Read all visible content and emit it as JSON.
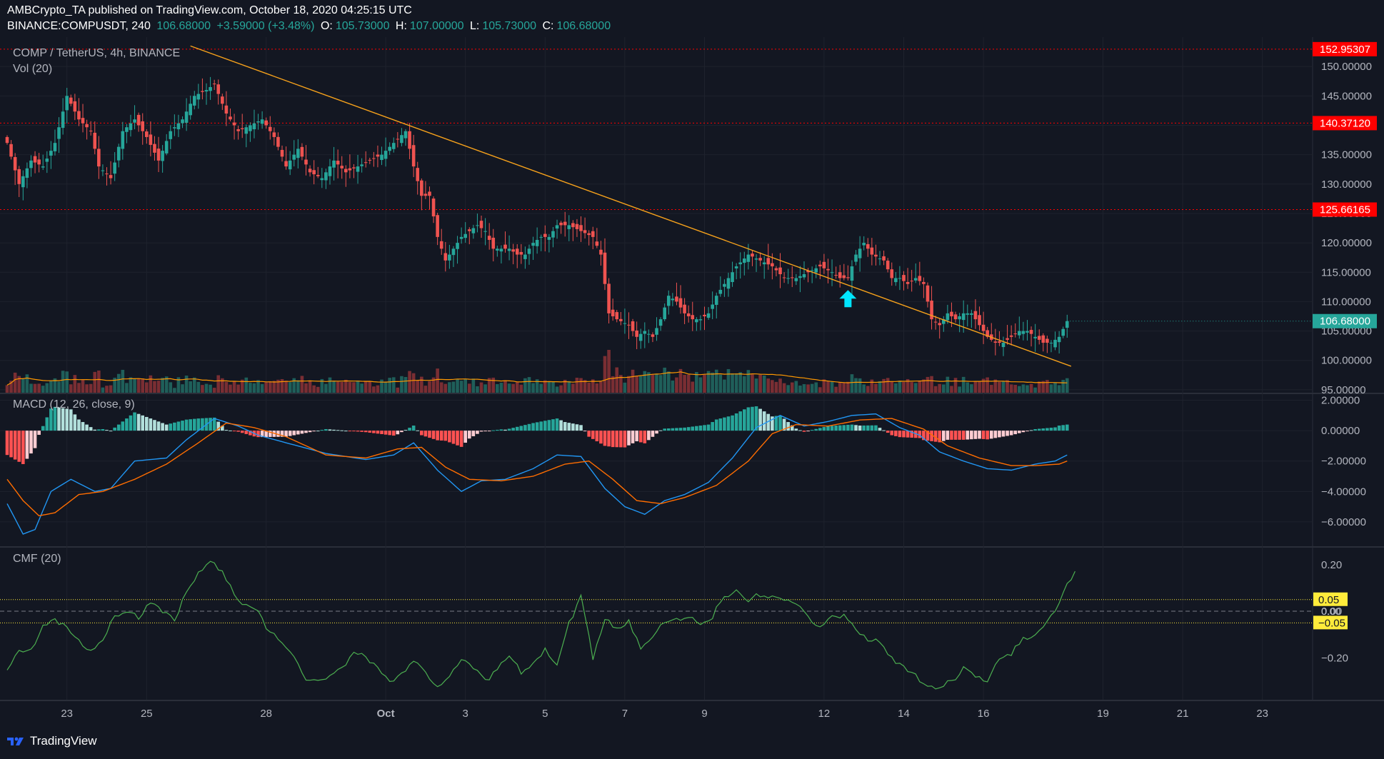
{
  "header": {
    "publisher": "AMBCrypto_TA published on TradingView.com, October 18, 2020 04:25:15 UTC",
    "symbol": "BINANCE:COMPUSDT, 240",
    "last": "106.68000",
    "change": "+3.59000 (+3.48%)",
    "o_label": "O:",
    "o_value": "105.73000",
    "h_label": "H:",
    "h_value": "107.00000",
    "l_label": "L:",
    "l_value": "105.73000",
    "c_label": "C:",
    "c_value": "106.68000"
  },
  "panes": {
    "main_title": "COMP / TetherUS, 4h, BINANCE",
    "vol_title": "Vol (20)",
    "macd_title": "MACD (12, 26, close, 9)",
    "cmf_title": "CMF (20)"
  },
  "footer": {
    "brand": "TradingView"
  },
  "colors": {
    "background": "#131722",
    "up": "#26a69a",
    "down": "#ef5350",
    "trendline": "#f7a21b",
    "macd": "#2196f3",
    "signal": "#ff6d00",
    "cmf": "#4caf50",
    "level": "#ff0000",
    "cmf_band": "#ffeb3b"
  },
  "chart_data": [
    {
      "type": "candlestick",
      "title": "COMP / TetherUS, 4h, BINANCE",
      "y_ticks": [
        "150.00000",
        "145.00000",
        "140.00000",
        "135.00000",
        "130.00000",
        "125.00000",
        "120.00000",
        "115.00000",
        "110.00000",
        "105.00000",
        "100.00000",
        "95.00000"
      ],
      "ylim": [
        94.5,
        155
      ],
      "x_ticks": [
        {
          "label": "23",
          "i": 15
        },
        {
          "label": "25",
          "i": 35
        },
        {
          "label": "28",
          "i": 65
        },
        {
          "label": "Oct",
          "i": 95
        },
        {
          "label": "3",
          "i": 115
        },
        {
          "label": "5",
          "i": 135
        },
        {
          "label": "7",
          "i": 155
        },
        {
          "label": "9",
          "i": 175
        },
        {
          "label": "12",
          "i": 205
        },
        {
          "label": "14",
          "i": 225
        },
        {
          "label": "16",
          "i": 245
        },
        {
          "label": "19",
          "i": 275
        },
        {
          "label": "21",
          "i": 295
        },
        {
          "label": "23",
          "i": 315
        }
      ],
      "horizontal_levels": [
        {
          "value": 152.95307,
          "label": "152.95307"
        },
        {
          "value": 140.3712,
          "label": "140.37120"
        },
        {
          "value": 125.66165,
          "label": "125.66165"
        }
      ],
      "last_price": {
        "value": 106.68,
        "label": "106.68000"
      },
      "trendline": {
        "from": {
          "i": 46,
          "price": 153.5
        },
        "to": {
          "i": 267,
          "price": 99.0
        }
      },
      "signal_arrow": {
        "i": 211,
        "price": 110.5
      },
      "anchors": [
        [
          0,
          137
        ],
        [
          3,
          130
        ],
        [
          6,
          134
        ],
        [
          9,
          133
        ],
        [
          12,
          137
        ],
        [
          15,
          145
        ],
        [
          18,
          141
        ],
        [
          21,
          139
        ],
        [
          23,
          133
        ],
        [
          26,
          131
        ],
        [
          29,
          139
        ],
        [
          32,
          141
        ],
        [
          35,
          138
        ],
        [
          38,
          134
        ],
        [
          41,
          139
        ],
        [
          44,
          141
        ],
        [
          47,
          145
        ],
        [
          50,
          146
        ],
        [
          52,
          147
        ],
        [
          55,
          142
        ],
        [
          58,
          139
        ],
        [
          61,
          140
        ],
        [
          64,
          141
        ],
        [
          67,
          138
        ],
        [
          70,
          133
        ],
        [
          73,
          136
        ],
        [
          76,
          132
        ],
        [
          79,
          131
        ],
        [
          82,
          134
        ],
        [
          85,
          132
        ],
        [
          88,
          133
        ],
        [
          91,
          134
        ],
        [
          94,
          135
        ],
        [
          97,
          137
        ],
        [
          100,
          139
        ],
        [
          102,
          133
        ],
        [
          104,
          128
        ],
        [
          106,
          128
        ],
        [
          108,
          121
        ],
        [
          110,
          117
        ],
        [
          112,
          119
        ],
        [
          114,
          121
        ],
        [
          116,
          122
        ],
        [
          118,
          123
        ],
        [
          120,
          122
        ],
        [
          122,
          119
        ],
        [
          124,
          119
        ],
        [
          126,
          119
        ],
        [
          128,
          118
        ],
        [
          130,
          118
        ],
        [
          132,
          120
        ],
        [
          134,
          121
        ],
        [
          136,
          121
        ],
        [
          138,
          123
        ],
        [
          141,
          123
        ],
        [
          144,
          122
        ],
        [
          147,
          121
        ],
        [
          149,
          118
        ],
        [
          151,
          108
        ],
        [
          153,
          107
        ],
        [
          156,
          106
        ],
        [
          158,
          104
        ],
        [
          160,
          105
        ],
        [
          162,
          104
        ],
        [
          164,
          107
        ],
        [
          166,
          111
        ],
        [
          168,
          110
        ],
        [
          170,
          108
        ],
        [
          172,
          107
        ],
        [
          174,
          107
        ],
        [
          176,
          108
        ],
        [
          178,
          111
        ],
        [
          180,
          113
        ],
        [
          183,
          116
        ],
        [
          186,
          118
        ],
        [
          189,
          117
        ],
        [
          192,
          116
        ],
        [
          195,
          114
        ],
        [
          198,
          114
        ],
        [
          201,
          115
        ],
        [
          204,
          116
        ],
        [
          207,
          115
        ],
        [
          209,
          114
        ],
        [
          211,
          114
        ],
        [
          213,
          118
        ],
        [
          215,
          120
        ],
        [
          217,
          118
        ],
        [
          220,
          117
        ],
        [
          222,
          114
        ],
        [
          224,
          114
        ],
        [
          226,
          113
        ],
        [
          228,
          114
        ],
        [
          230,
          113
        ],
        [
          232,
          107
        ],
        [
          234,
          106
        ],
        [
          236,
          108
        ],
        [
          238,
          107
        ],
        [
          240,
          108
        ],
        [
          242,
          108
        ],
        [
          244,
          106
        ],
        [
          246,
          104
        ],
        [
          248,
          103
        ],
        [
          250,
          103
        ],
        [
          252,
          104
        ],
        [
          254,
          105
        ],
        [
          256,
          105
        ],
        [
          258,
          104
        ],
        [
          260,
          103
        ],
        [
          262,
          103
        ],
        [
          264,
          104
        ],
        [
          266,
          106.68
        ]
      ],
      "candles": 267
    },
    {
      "type": "bar",
      "title": "Vol (20)",
      "note": "volume histogram with 20-period moving average"
    },
    {
      "type": "line",
      "title": "MACD (12, 26, close, 9)",
      "y_ticks": [
        "2.00000",
        "0.00000",
        "−2.00000",
        "−4.00000",
        "−6.00000"
      ],
      "ylim": [
        -7.6,
        2.4
      ],
      "macd_anchors": [
        [
          0,
          -4.8
        ],
        [
          4,
          -6.8
        ],
        [
          7,
          -6.5
        ],
        [
          11,
          -4.0
        ],
        [
          16,
          -3.2
        ],
        [
          22,
          -4.0
        ],
        [
          26,
          -3.8
        ],
        [
          32,
          -2.0
        ],
        [
          40,
          -1.8
        ],
        [
          45,
          -0.6
        ],
        [
          52,
          0.8
        ],
        [
          58,
          0.3
        ],
        [
          63,
          -0.3
        ],
        [
          70,
          -0.8
        ],
        [
          80,
          -1.5
        ],
        [
          90,
          -1.9
        ],
        [
          97,
          -1.6
        ],
        [
          102,
          -0.8
        ],
        [
          108,
          -2.6
        ],
        [
          114,
          -4.0
        ],
        [
          119,
          -3.3
        ],
        [
          125,
          -3.2
        ],
        [
          132,
          -2.5
        ],
        [
          138,
          -1.6
        ],
        [
          144,
          -1.7
        ],
        [
          150,
          -3.8
        ],
        [
          155,
          -5.0
        ],
        [
          160,
          -5.5
        ],
        [
          165,
          -4.6
        ],
        [
          170,
          -4.2
        ],
        [
          176,
          -3.4
        ],
        [
          182,
          -1.8
        ],
        [
          188,
          0.2
        ],
        [
          194,
          1.0
        ],
        [
          200,
          0.3
        ],
        [
          206,
          0.6
        ],
        [
          212,
          1.0
        ],
        [
          218,
          1.1
        ],
        [
          224,
          0.2
        ],
        [
          229,
          -0.3
        ],
        [
          234,
          -1.4
        ],
        [
          240,
          -2.0
        ],
        [
          246,
          -2.5
        ],
        [
          252,
          -2.6
        ],
        [
          258,
          -2.2
        ],
        [
          263,
          -2.0
        ],
        [
          266,
          -1.6
        ]
      ],
      "signal_anchors": [
        [
          0,
          -3.2
        ],
        [
          4,
          -4.6
        ],
        [
          8,
          -5.6
        ],
        [
          12,
          -5.4
        ],
        [
          18,
          -4.2
        ],
        [
          24,
          -4.0
        ],
        [
          32,
          -3.2
        ],
        [
          40,
          -2.2
        ],
        [
          48,
          -0.8
        ],
        [
          55,
          0.5
        ],
        [
          62,
          0.2
        ],
        [
          70,
          -0.4
        ],
        [
          80,
          -1.6
        ],
        [
          90,
          -1.8
        ],
        [
          98,
          -1.2
        ],
        [
          104,
          -1.1
        ],
        [
          110,
          -2.4
        ],
        [
          116,
          -3.2
        ],
        [
          124,
          -3.3
        ],
        [
          132,
          -3.0
        ],
        [
          140,
          -2.2
        ],
        [
          146,
          -2.0
        ],
        [
          152,
          -3.2
        ],
        [
          158,
          -4.6
        ],
        [
          164,
          -4.8
        ],
        [
          170,
          -4.4
        ],
        [
          178,
          -3.6
        ],
        [
          186,
          -2.0
        ],
        [
          192,
          -0.2
        ],
        [
          198,
          0.4
        ],
        [
          206,
          0.3
        ],
        [
          214,
          0.7
        ],
        [
          222,
          0.8
        ],
        [
          230,
          0.1
        ],
        [
          236,
          -1.0
        ],
        [
          244,
          -1.8
        ],
        [
          252,
          -2.3
        ],
        [
          258,
          -2.3
        ],
        [
          264,
          -2.2
        ],
        [
          266,
          -2.0
        ]
      ],
      "series": [
        {
          "name": "MACD"
        },
        {
          "name": "Signal"
        },
        {
          "name": "Histogram"
        }
      ]
    },
    {
      "type": "line",
      "title": "CMF (20)",
      "y_ticks": [
        "0.20",
        "0.00",
        "−0.20"
      ],
      "ylim": [
        -0.38,
        0.27
      ],
      "bands": [
        {
          "value": 0.05,
          "label": "0.05"
        },
        {
          "value": -0.05,
          "label": "−0.05"
        }
      ],
      "band_zero_label": "0.00",
      "anchors": [
        [
          0,
          -0.24
        ],
        [
          3,
          -0.18
        ],
        [
          6,
          -0.16
        ],
        [
          9,
          -0.07
        ],
        [
          12,
          -0.04
        ],
        [
          15,
          -0.07
        ],
        [
          18,
          -0.12
        ],
        [
          21,
          -0.18
        ],
        [
          24,
          -0.13
        ],
        [
          27,
          -0.02
        ],
        [
          30,
          0.0
        ],
        [
          33,
          -0.03
        ],
        [
          36,
          0.04
        ],
        [
          39,
          0.0
        ],
        [
          42,
          -0.04
        ],
        [
          45,
          0.08
        ],
        [
          48,
          0.16
        ],
        [
          51,
          0.22
        ],
        [
          54,
          0.17
        ],
        [
          57,
          0.07
        ],
        [
          60,
          0.02
        ],
        [
          63,
          -0.01
        ],
        [
          66,
          -0.09
        ],
        [
          69,
          -0.13
        ],
        [
          72,
          -0.2
        ],
        [
          75,
          -0.3
        ],
        [
          78,
          -0.3
        ],
        [
          81,
          -0.27
        ],
        [
          84,
          -0.24
        ],
        [
          87,
          -0.18
        ],
        [
          90,
          -0.2
        ],
        [
          93,
          -0.24
        ],
        [
          96,
          -0.3
        ],
        [
          99,
          -0.27
        ],
        [
          102,
          -0.22
        ],
        [
          105,
          -0.26
        ],
        [
          108,
          -0.32
        ],
        [
          111,
          -0.27
        ],
        [
          114,
          -0.2
        ],
        [
          117,
          -0.24
        ],
        [
          120,
          -0.3
        ],
        [
          123,
          -0.25
        ],
        [
          126,
          -0.2
        ],
        [
          129,
          -0.26
        ],
        [
          132,
          -0.22
        ],
        [
          135,
          -0.16
        ],
        [
          138,
          -0.24
        ],
        [
          141,
          -0.05
        ],
        [
          144,
          0.06
        ],
        [
          147,
          -0.2
        ],
        [
          150,
          -0.04
        ],
        [
          153,
          -0.07
        ],
        [
          156,
          -0.04
        ],
        [
          159,
          -0.16
        ],
        [
          162,
          -0.1
        ],
        [
          165,
          -0.05
        ],
        [
          168,
          -0.03
        ],
        [
          171,
          -0.02
        ],
        [
          174,
          -0.05
        ],
        [
          177,
          -0.02
        ],
        [
          180,
          0.06
        ],
        [
          183,
          0.08
        ],
        [
          186,
          0.05
        ],
        [
          189,
          0.07
        ],
        [
          192,
          0.06
        ],
        [
          195,
          0.04
        ],
        [
          198,
          0.03
        ],
        [
          201,
          -0.03
        ],
        [
          204,
          -0.06
        ],
        [
          207,
          -0.03
        ],
        [
          210,
          -0.02
        ],
        [
          213,
          -0.08
        ],
        [
          216,
          -0.12
        ],
        [
          219,
          -0.13
        ],
        [
          222,
          -0.2
        ],
        [
          225,
          -0.24
        ],
        [
          228,
          -0.28
        ],
        [
          231,
          -0.33
        ],
        [
          234,
          -0.33
        ],
        [
          237,
          -0.3
        ],
        [
          240,
          -0.25
        ],
        [
          243,
          -0.28
        ],
        [
          246,
          -0.3
        ],
        [
          249,
          -0.2
        ],
        [
          252,
          -0.18
        ],
        [
          255,
          -0.12
        ],
        [
          258,
          -0.1
        ],
        [
          261,
          -0.05
        ],
        [
          264,
          0.04
        ],
        [
          266,
          0.12
        ],
        [
          268,
          0.16
        ]
      ]
    }
  ]
}
